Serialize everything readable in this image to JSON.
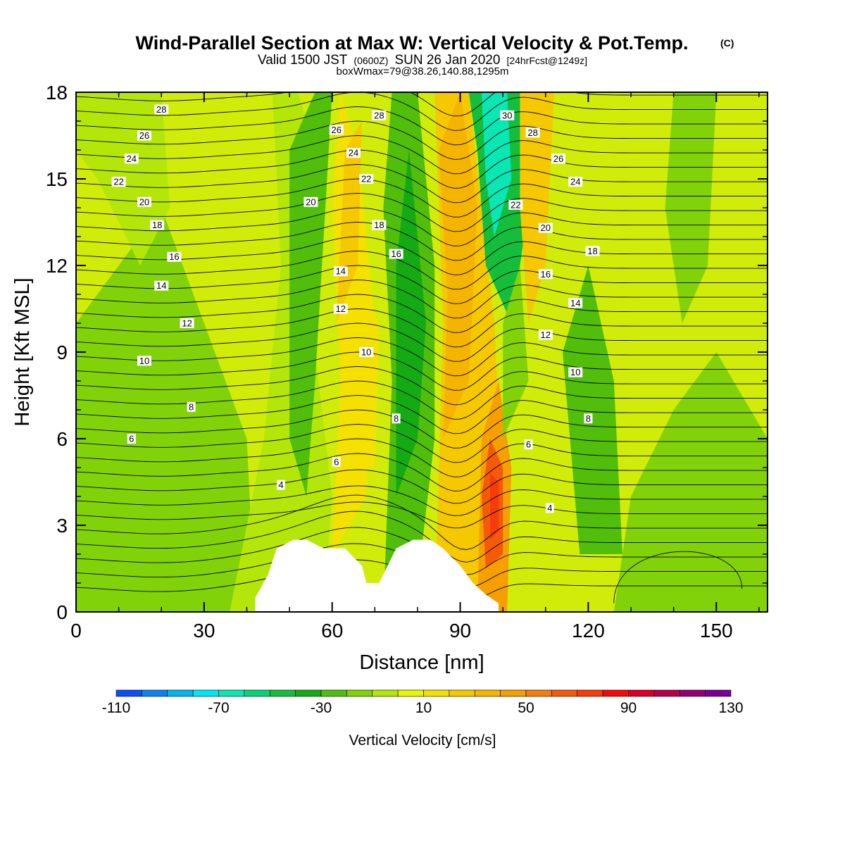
{
  "title": {
    "main": "Wind-Parallel Section at Max W: Vertical Velocity & Pot.Temp.",
    "copyright": "(C)",
    "valid_prefix": "Valid 1500 JST",
    "valid_zulu": "(0600Z)",
    "valid_date": "SUN 26 Jan 2020",
    "forecast": "[24hrFcst@1249z]",
    "box": "boxWmax=79@38.26,140.88,1295m"
  },
  "colorbar": {
    "label": "Vertical Velocity [cm/s]",
    "tick_labels": [
      "-110",
      "-70",
      "-30",
      "10",
      "50",
      "90",
      "130"
    ],
    "colors": [
      "#0000ff",
      "#0a50f5",
      "#0a82f5",
      "#00b4f0",
      "#00e6f5",
      "#0ae6b4",
      "#0ad278",
      "#14be3c",
      "#14aa14",
      "#50be0a",
      "#82d20a",
      "#b4e60a",
      "#e6f500",
      "#f5e100",
      "#f5c800",
      "#f5b400",
      "#f5a000",
      "#f57d0a",
      "#f55a0a",
      "#f53c0a",
      "#f50a0a",
      "#dc0028",
      "#b4004b",
      "#96006e",
      "#780096",
      "#6e1478"
    ]
  },
  "chart_data": {
    "type": "contour",
    "xlabel": "Distance [nm]",
    "ylabel": "Height [Kft MSL]",
    "xlim": [
      0,
      162
    ],
    "ylim": [
      0,
      18
    ],
    "xticks": [
      "0",
      "30",
      "60",
      "90",
      "120",
      "150"
    ],
    "yticks": [
      "0",
      "3",
      "6",
      "9",
      "12",
      "15",
      "18"
    ],
    "x_ticks": [
      0,
      30,
      60,
      90,
      120,
      150
    ],
    "y_ticks": [
      0,
      3,
      6,
      9,
      12,
      15,
      18
    ],
    "filled_field": "Vertical Velocity [cm/s]",
    "fill_levels": [
      -110,
      -70,
      -30,
      10,
      50,
      90,
      130
    ],
    "w_features": [
      {
        "x": 97.5,
        "y": 3.5,
        "w": 75
      },
      {
        "x": 98,
        "y": 15.5,
        "w": -65
      },
      {
        "x": 88,
        "y": 13,
        "w": 35
      },
      {
        "x": 80,
        "y": 10,
        "w": -25
      },
      {
        "x": 64,
        "y": 12,
        "w": 30
      },
      {
        "x": 69,
        "y": 8,
        "w": 20
      },
      {
        "x": 53,
        "y": 11,
        "w": -20
      },
      {
        "x": 120,
        "y": 5.5,
        "w": -22
      },
      {
        "x": 107,
        "y": 16.5,
        "w": 30
      },
      {
        "x": 140,
        "y": 1.5,
        "w": -15
      }
    ],
    "terrain": [
      [
        42,
        0.5
      ],
      [
        45,
        1.3
      ],
      [
        47,
        2.2
      ],
      [
        51,
        2.5
      ],
      [
        54,
        2.5
      ],
      [
        58,
        2.2
      ],
      [
        63,
        2.2
      ],
      [
        67,
        1.6
      ],
      [
        68,
        1.0
      ],
      [
        71,
        1.0
      ],
      [
        73,
        1.6
      ],
      [
        75,
        2.2
      ],
      [
        79,
        2.5
      ],
      [
        83,
        2.5
      ],
      [
        86,
        2.2
      ],
      [
        90,
        1.6
      ],
      [
        93,
        1.0
      ],
      [
        96,
        0.6
      ],
      [
        99,
        0.3
      ]
    ],
    "contour_field": "Potential Temperature",
    "contour_labels": [
      {
        "text": "4",
        "x": 48,
        "y": 4.4
      },
      {
        "text": "4",
        "x": 111,
        "y": 3.6
      },
      {
        "text": "6",
        "x": 13,
        "y": 6.0
      },
      {
        "text": "6",
        "x": 61,
        "y": 5.2
      },
      {
        "text": "6",
        "x": 106,
        "y": 5.8
      },
      {
        "text": "8",
        "x": 27,
        "y": 7.1
      },
      {
        "text": "8",
        "x": 75,
        "y": 6.7
      },
      {
        "text": "8",
        "x": 120,
        "y": 6.7
      },
      {
        "text": "10",
        "x": 16,
        "y": 8.7
      },
      {
        "text": "10",
        "x": 68,
        "y": 9.0
      },
      {
        "text": "10",
        "x": 117,
        "y": 8.3
      },
      {
        "text": "12",
        "x": 26,
        "y": 10.0
      },
      {
        "text": "12",
        "x": 62,
        "y": 10.5
      },
      {
        "text": "12",
        "x": 110,
        "y": 9.6
      },
      {
        "text": "14",
        "x": 20,
        "y": 11.3
      },
      {
        "text": "14",
        "x": 62,
        "y": 11.8
      },
      {
        "text": "14",
        "x": 117,
        "y": 10.7
      },
      {
        "text": "16",
        "x": 23,
        "y": 12.3
      },
      {
        "text": "16",
        "x": 75,
        "y": 12.4
      },
      {
        "text": "16",
        "x": 110,
        "y": 11.7
      },
      {
        "text": "18",
        "x": 19,
        "y": 13.4
      },
      {
        "text": "18",
        "x": 71,
        "y": 13.4
      },
      {
        "text": "18",
        "x": 121,
        "y": 12.5
      },
      {
        "text": "20",
        "x": 16,
        "y": 14.2
      },
      {
        "text": "20",
        "x": 55,
        "y": 14.2
      },
      {
        "text": "20",
        "x": 110,
        "y": 13.3
      },
      {
        "text": "22",
        "x": 10,
        "y": 14.9
      },
      {
        "text": "22",
        "x": 68,
        "y": 15.0
      },
      {
        "text": "22",
        "x": 103,
        "y": 14.1
      },
      {
        "text": "24",
        "x": 13,
        "y": 15.7
      },
      {
        "text": "24",
        "x": 65,
        "y": 15.9
      },
      {
        "text": "24",
        "x": 117,
        "y": 14.9
      },
      {
        "text": "26",
        "x": 16,
        "y": 16.5
      },
      {
        "text": "26",
        "x": 61,
        "y": 16.7
      },
      {
        "text": "26",
        "x": 113,
        "y": 15.7
      },
      {
        "text": "28",
        "x": 20,
        "y": 17.4
      },
      {
        "text": "28",
        "x": 71,
        "y": 17.2
      },
      {
        "text": "28",
        "x": 107,
        "y": 16.6
      },
      {
        "text": "30",
        "x": 101,
        "y": 17.2
      }
    ]
  }
}
